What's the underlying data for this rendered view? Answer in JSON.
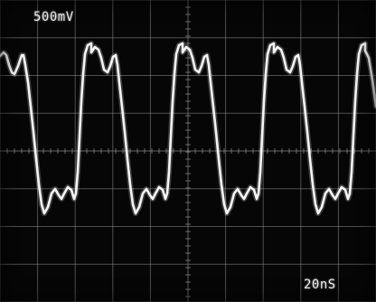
{
  "scope": {
    "volts_per_div": "500mV",
    "time_per_div": "20nS"
  },
  "colors": {
    "screen": "#060606",
    "grid": "#9a9a9a",
    "trace": "#f4f4f4"
  }
}
